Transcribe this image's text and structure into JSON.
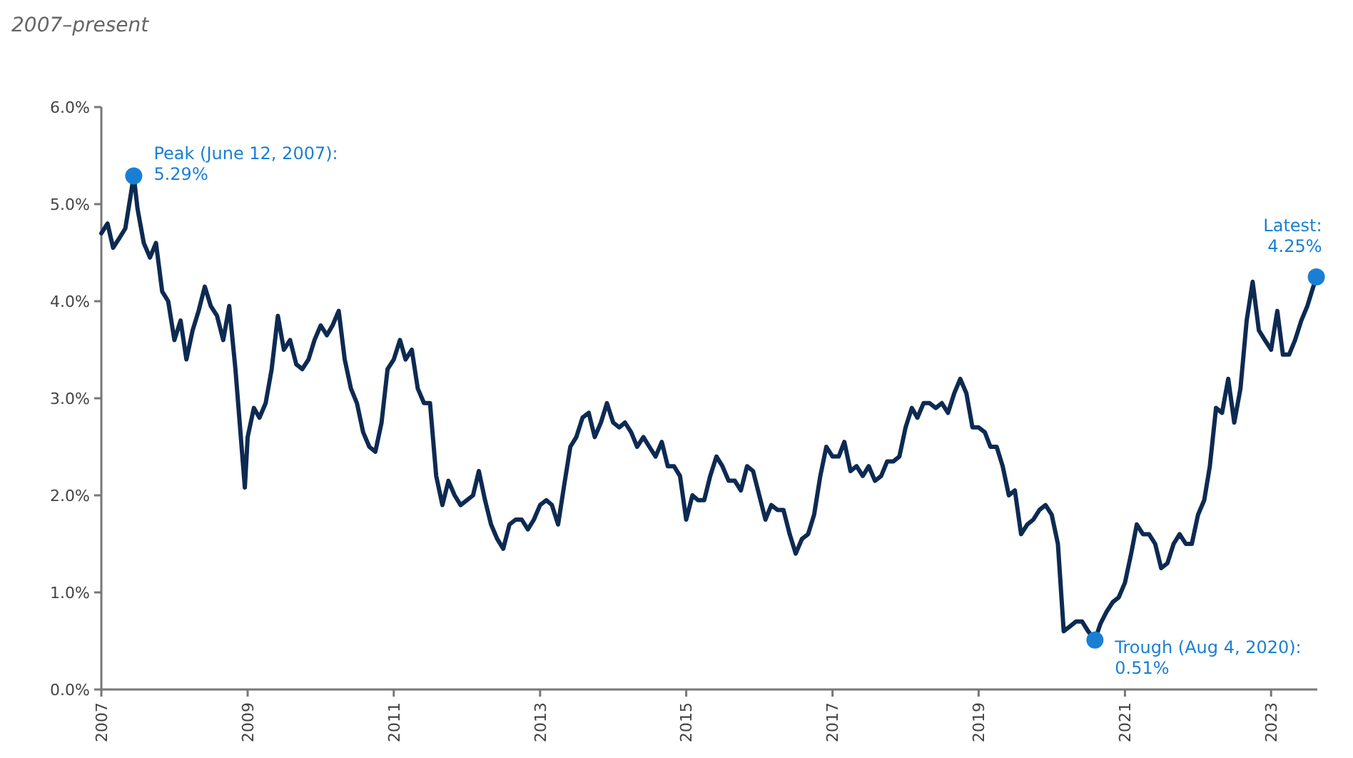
{
  "chart_data": {
    "type": "line",
    "subtitle": "2007–present",
    "xlim": [
      "2007-01-01",
      "2023-08-20"
    ],
    "xticks": [
      "2007",
      "2009",
      "2011",
      "2013",
      "2015",
      "2017",
      "2019",
      "2021",
      "2023"
    ],
    "ylim": [
      0,
      6
    ],
    "yticks": [
      {
        "value": 0,
        "label": "0.0%"
      },
      {
        "value": 1,
        "label": "1.0%"
      },
      {
        "value": 2,
        "label": "2.0%"
      },
      {
        "value": 3,
        "label": "3.0%"
      },
      {
        "value": 4,
        "label": "4.0%"
      },
      {
        "value": 5,
        "label": "5.0%"
      },
      {
        "value": 6,
        "label": "6.0%"
      }
    ],
    "grid": false,
    "series": [
      {
        "color": "#0d2a52",
        "line_style": "solid",
        "x": [
          "2007-01",
          "2007-02",
          "2007-03",
          "2007-04",
          "2007-05",
          "2007-06-12",
          "2007-07",
          "2007-08",
          "2007-09",
          "2007-10",
          "2007-11",
          "2007-12",
          "2008-01",
          "2008-02",
          "2008-03",
          "2008-04",
          "2008-05",
          "2008-06",
          "2008-07",
          "2008-08",
          "2008-09",
          "2008-10",
          "2008-11",
          "2008-12-18",
          "2009-01",
          "2009-02",
          "2009-03",
          "2009-04",
          "2009-05",
          "2009-06",
          "2009-07",
          "2009-08",
          "2009-09",
          "2009-10",
          "2009-11",
          "2009-12",
          "2010-01",
          "2010-02",
          "2010-03",
          "2010-04",
          "2010-05",
          "2010-06",
          "2010-07",
          "2010-08",
          "2010-09",
          "2010-10",
          "2010-11",
          "2010-12",
          "2011-01",
          "2011-02",
          "2011-03",
          "2011-04",
          "2011-05",
          "2011-06",
          "2011-07",
          "2011-08",
          "2011-09",
          "2011-10",
          "2011-11",
          "2011-12",
          "2012-01",
          "2012-02",
          "2012-03",
          "2012-04",
          "2012-05",
          "2012-06",
          "2012-07",
          "2012-08",
          "2012-09",
          "2012-10",
          "2012-11",
          "2012-12",
          "2013-01",
          "2013-02",
          "2013-03",
          "2013-04",
          "2013-05",
          "2013-06",
          "2013-07",
          "2013-08",
          "2013-09",
          "2013-10",
          "2013-11",
          "2013-12",
          "2014-01",
          "2014-02",
          "2014-03",
          "2014-04",
          "2014-05",
          "2014-06",
          "2014-07",
          "2014-08",
          "2014-09",
          "2014-10",
          "2014-11",
          "2014-12",
          "2015-01",
          "2015-02",
          "2015-03",
          "2015-04",
          "2015-05",
          "2015-06",
          "2015-07",
          "2015-08",
          "2015-09",
          "2015-10",
          "2015-11",
          "2015-12",
          "2016-01",
          "2016-02",
          "2016-03",
          "2016-04",
          "2016-05",
          "2016-06",
          "2016-07",
          "2016-08",
          "2016-09",
          "2016-10",
          "2016-11",
          "2016-12",
          "2017-01",
          "2017-02",
          "2017-03",
          "2017-04",
          "2017-05",
          "2017-06",
          "2017-07",
          "2017-08",
          "2017-09",
          "2017-10",
          "2017-11",
          "2017-12",
          "2018-01",
          "2018-02",
          "2018-03",
          "2018-04",
          "2018-05",
          "2018-06",
          "2018-07",
          "2018-08",
          "2018-09",
          "2018-10",
          "2018-11",
          "2018-12",
          "2019-01",
          "2019-02",
          "2019-03",
          "2019-04",
          "2019-05",
          "2019-06",
          "2019-07",
          "2019-08",
          "2019-09",
          "2019-10",
          "2019-11",
          "2019-12",
          "2020-01",
          "2020-02",
          "2020-03",
          "2020-04",
          "2020-05",
          "2020-06",
          "2020-07",
          "2020-08-04",
          "2020-09",
          "2020-10",
          "2020-11",
          "2020-12",
          "2021-01",
          "2021-02",
          "2021-03",
          "2021-04",
          "2021-05",
          "2021-06",
          "2021-07",
          "2021-08",
          "2021-09",
          "2021-10",
          "2021-11",
          "2021-12",
          "2022-01",
          "2022-02",
          "2022-03",
          "2022-04",
          "2022-05",
          "2022-06",
          "2022-07",
          "2022-08",
          "2022-09",
          "2022-10",
          "2022-11",
          "2022-12",
          "2023-01",
          "2023-02",
          "2023-03",
          "2023-04",
          "2023-05",
          "2023-06",
          "2023-07",
          "2023-08-15"
        ],
        "values": [
          4.7,
          4.8,
          4.55,
          4.65,
          4.75,
          5.29,
          4.95,
          4.6,
          4.45,
          4.6,
          4.1,
          4.0,
          3.6,
          3.8,
          3.4,
          3.7,
          3.9,
          4.15,
          3.95,
          3.85,
          3.6,
          3.95,
          3.3,
          2.08,
          2.6,
          2.9,
          2.8,
          2.95,
          3.3,
          3.85,
          3.5,
          3.6,
          3.35,
          3.3,
          3.4,
          3.6,
          3.75,
          3.65,
          3.75,
          3.9,
          3.4,
          3.1,
          2.95,
          2.65,
          2.5,
          2.45,
          2.75,
          3.3,
          3.4,
          3.6,
          3.4,
          3.5,
          3.1,
          2.95,
          2.95,
          2.2,
          1.9,
          2.15,
          2.0,
          1.9,
          1.95,
          2.0,
          2.25,
          1.95,
          1.7,
          1.55,
          1.45,
          1.7,
          1.75,
          1.75,
          1.65,
          1.75,
          1.9,
          1.95,
          1.9,
          1.7,
          2.1,
          2.5,
          2.6,
          2.8,
          2.85,
          2.6,
          2.75,
          2.95,
          2.75,
          2.7,
          2.75,
          2.65,
          2.5,
          2.6,
          2.5,
          2.4,
          2.55,
          2.3,
          2.3,
          2.2,
          1.75,
          2.0,
          1.95,
          1.95,
          2.2,
          2.4,
          2.3,
          2.15,
          2.15,
          2.05,
          2.3,
          2.25,
          2.0,
          1.75,
          1.9,
          1.85,
          1.85,
          1.6,
          1.4,
          1.55,
          1.6,
          1.8,
          2.2,
          2.5,
          2.4,
          2.4,
          2.55,
          2.25,
          2.3,
          2.2,
          2.3,
          2.15,
          2.2,
          2.35,
          2.35,
          2.4,
          2.7,
          2.9,
          2.8,
          2.95,
          2.95,
          2.9,
          2.95,
          2.85,
          3.05,
          3.2,
          3.05,
          2.7,
          2.7,
          2.65,
          2.5,
          2.5,
          2.3,
          2.0,
          2.05,
          1.6,
          1.7,
          1.75,
          1.85,
          1.9,
          1.8,
          1.5,
          0.6,
          0.65,
          0.7,
          0.7,
          0.6,
          0.51,
          0.68,
          0.8,
          0.9,
          0.95,
          1.1,
          1.4,
          1.7,
          1.6,
          1.6,
          1.5,
          1.25,
          1.3,
          1.5,
          1.6,
          1.5,
          1.5,
          1.8,
          1.95,
          2.3,
          2.9,
          2.85,
          3.2,
          2.75,
          3.1,
          3.8,
          4.2,
          3.7,
          3.6,
          3.5,
          3.9,
          3.45,
          3.45,
          3.6,
          3.8,
          3.95,
          4.25
        ]
      },
      {
        "type": "scatter",
        "color": "#1a7fd4",
        "marker": "circle",
        "x": [
          "2007-06-12",
          "2020-08-04",
          "2023-08-15"
        ],
        "values": [
          5.29,
          0.51,
          4.25
        ]
      }
    ],
    "annotations": [
      {
        "text": "Peak (June 12, 2007):\n5.29%",
        "x": "2007-06-12",
        "y": 5.29
      },
      {
        "text": "Trough (Aug 4, 2020):\n0.51%",
        "x": "2020-08-04",
        "y": 0.51
      },
      {
        "text": "Latest:\n4.25%",
        "x": "2023-08-15",
        "y": 4.25
      }
    ]
  }
}
